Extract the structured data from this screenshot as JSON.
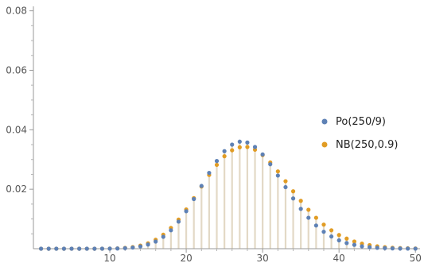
{
  "chart_data": {
    "type": "scatter",
    "style": "discrete-plot-with-stems",
    "xlim": [
      1,
      50
    ],
    "ylim": [
      0,
      0.08
    ],
    "x_ticks": [
      10,
      20,
      30,
      40,
      50
    ],
    "y_ticks": [
      0.02,
      0.04,
      0.06,
      0.08
    ],
    "x_tick_labels": [
      "10",
      "20",
      "30",
      "40",
      "50"
    ],
    "y_tick_labels": [
      "0.02",
      "0.04",
      "0.06",
      "0.08"
    ],
    "legend_position": "right",
    "stem_color": "#e3d9c6",
    "axis_color": "#9a9a9a",
    "series": [
      {
        "name": "Po(250/9)",
        "color": "#5e81b5",
        "x": [
          1,
          2,
          3,
          4,
          5,
          6,
          7,
          8,
          9,
          10,
          11,
          12,
          13,
          14,
          15,
          16,
          17,
          18,
          19,
          20,
          21,
          22,
          23,
          24,
          25,
          26,
          27,
          28,
          29,
          30,
          31,
          32,
          33,
          34,
          35,
          36,
          37,
          38,
          39,
          40,
          41,
          42,
          43,
          44,
          45,
          46,
          47,
          48,
          49,
          50
        ],
        "y": [
          0,
          0,
          0,
          0,
          0,
          0,
          0,
          0,
          0,
          3e-05,
          7e-05,
          0.00018,
          0.00038,
          0.00076,
          0.0014,
          0.0024,
          0.004,
          0.0062,
          0.0091,
          0.0126,
          0.0167,
          0.0211,
          0.0255,
          0.0295,
          0.0328,
          0.035,
          0.036,
          0.0357,
          0.0342,
          0.0317,
          0.0284,
          0.0246,
          0.0207,
          0.0169,
          0.0134,
          0.0104,
          0.0078,
          0.0057,
          0.0041,
          0.0028,
          0.0019,
          0.0013,
          0.0008,
          0.0005,
          0.0003,
          0.0002,
          0.0001,
          6e-05,
          4e-05,
          2e-05
        ]
      },
      {
        "name": "NB(250,0.9)",
        "color": "#e19c24",
        "x": [
          1,
          2,
          3,
          4,
          5,
          6,
          7,
          8,
          9,
          10,
          11,
          12,
          13,
          14,
          15,
          16,
          17,
          18,
          19,
          20,
          21,
          22,
          23,
          24,
          25,
          26,
          27,
          28,
          29,
          30,
          31,
          32,
          33,
          34,
          35,
          36,
          37,
          38,
          39,
          40,
          41,
          42,
          43,
          44,
          45,
          46,
          47,
          48,
          49,
          50
        ],
        "y": [
          0,
          0,
          0,
          0,
          0,
          0,
          0,
          0,
          0,
          5e-05,
          0.00012,
          0.00027,
          0.00055,
          0.00104,
          0.00182,
          0.003,
          0.0047,
          0.007,
          0.0098,
          0.0132,
          0.017,
          0.0209,
          0.0248,
          0.0282,
          0.0311,
          0.0331,
          0.0341,
          0.0342,
          0.0333,
          0.0315,
          0.029,
          0.026,
          0.0227,
          0.0193,
          0.0161,
          0.0131,
          0.0104,
          0.0081,
          0.0062,
          0.0046,
          0.0034,
          0.0024,
          0.0017,
          0.0012,
          0.0008,
          0.0005,
          0.0003,
          0.0002,
          0.00013,
          8e-05
        ]
      }
    ]
  }
}
